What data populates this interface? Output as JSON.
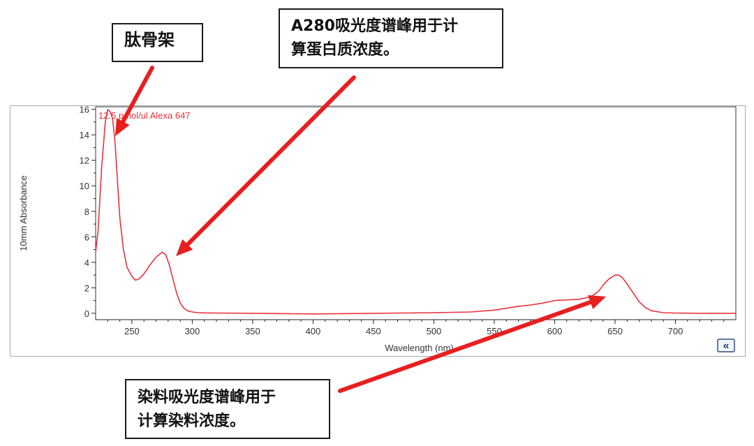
{
  "callouts": {
    "backbone": {
      "line1": "肽骨架"
    },
    "a280": {
      "line1": "A280吸光度谱峰用于计",
      "line2": "算蛋白质浓度。"
    },
    "dye": {
      "line1": "染料吸光度谱峰用于",
      "line2": "计算染料浓度。"
    }
  },
  "colors": {
    "curve": "#e8323c",
    "arrow": "#e81f1f",
    "axis": "#222222",
    "frame": "#333333",
    "label": "#333333"
  },
  "collapse_icon": {
    "glyph": "«",
    "name": "double-chevron-left-icon"
  },
  "chart_data": {
    "type": "line",
    "title": "",
    "annotation": "12.5 pmol/ul Alexa 647",
    "xlabel": "Wavelength (nm)",
    "ylabel": "10mm Absorbance",
    "xlim": [
      220,
      750
    ],
    "ylim": [
      -0.5,
      16.2
    ],
    "xticks": [
      250,
      300,
      350,
      400,
      450,
      500,
      550,
      600,
      650,
      700
    ],
    "yticks": [
      0,
      2,
      4,
      6,
      8,
      10,
      12,
      14,
      16
    ],
    "series": [
      {
        "name": "12.5 pmol/ul Alexa 647",
        "x": [
          220,
          222,
          225,
          228,
          230,
          232,
          234,
          236,
          238,
          240,
          243,
          246,
          250,
          253,
          256,
          260,
          265,
          270,
          275,
          278,
          281,
          284,
          287,
          290,
          293,
          296,
          300,
          305,
          310,
          320,
          350,
          400,
          450,
          500,
          530,
          550,
          560,
          570,
          580,
          590,
          600,
          610,
          620,
          630,
          636,
          640,
          645,
          650,
          653,
          656,
          660,
          665,
          670,
          675,
          680,
          690,
          700,
          720,
          750
        ],
        "y": [
          4.8,
          6.5,
          11.5,
          15.0,
          16.0,
          15.8,
          15.3,
          13.5,
          10.5,
          7.5,
          5.0,
          3.6,
          2.9,
          2.6,
          2.7,
          3.1,
          3.8,
          4.4,
          4.8,
          4.6,
          3.8,
          2.7,
          1.6,
          0.8,
          0.4,
          0.2,
          0.1,
          0.05,
          0.03,
          0.02,
          0.0,
          -0.05,
          0.0,
          0.05,
          0.1,
          0.25,
          0.4,
          0.55,
          0.65,
          0.8,
          1.0,
          1.05,
          1.1,
          1.3,
          1.7,
          2.2,
          2.7,
          3.0,
          3.0,
          2.8,
          2.3,
          1.6,
          0.9,
          0.45,
          0.2,
          0.05,
          0.02,
          0.0,
          0.0
        ]
      }
    ],
    "grid": false,
    "legend": "none"
  }
}
